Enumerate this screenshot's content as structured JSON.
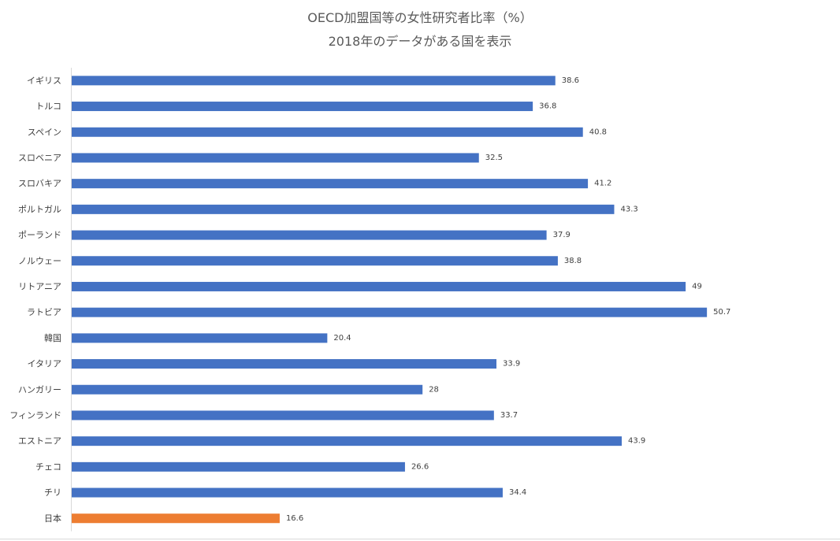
{
  "chart_data": {
    "type": "bar",
    "orientation": "horizontal",
    "title": "OECD加盟国等の女性研究者比率（%）",
    "subtitle": "2018年のデータがある国を表示",
    "xlabel": "",
    "ylabel": "",
    "xlim": [
      0,
      55
    ],
    "grid": false,
    "legend": "none",
    "categories": [
      "イギリス",
      "トルコ",
      "スペイン",
      "スロベニア",
      "スロバキア",
      "ポルトガル",
      "ポーランド",
      "ノルウェー",
      "リトアニア",
      "ラトビア",
      "韓国",
      "イタリア",
      "ハンガリー",
      "フィンランド",
      "エストニア",
      "チェコ",
      "チリ",
      "日本"
    ],
    "values": [
      38.6,
      36.8,
      40.8,
      32.5,
      41.2,
      43.3,
      37.9,
      38.8,
      49,
      50.7,
      20.4,
      33.9,
      28,
      33.7,
      43.9,
      26.6,
      34.4,
      16.6
    ],
    "value_labels": [
      "38.6",
      "36.8",
      "40.8",
      "32.5",
      "41.2",
      "43.3",
      "37.9",
      "38.8",
      "49",
      "50.7",
      "20.4",
      "33.9",
      "28",
      "33.7",
      "43.9",
      "26.6",
      "34.4",
      "16.6"
    ],
    "highlight": "日本",
    "colors": {
      "bar": "#4472C4",
      "highlight": "#ED7D31",
      "axis": "#d9d9d9"
    }
  }
}
